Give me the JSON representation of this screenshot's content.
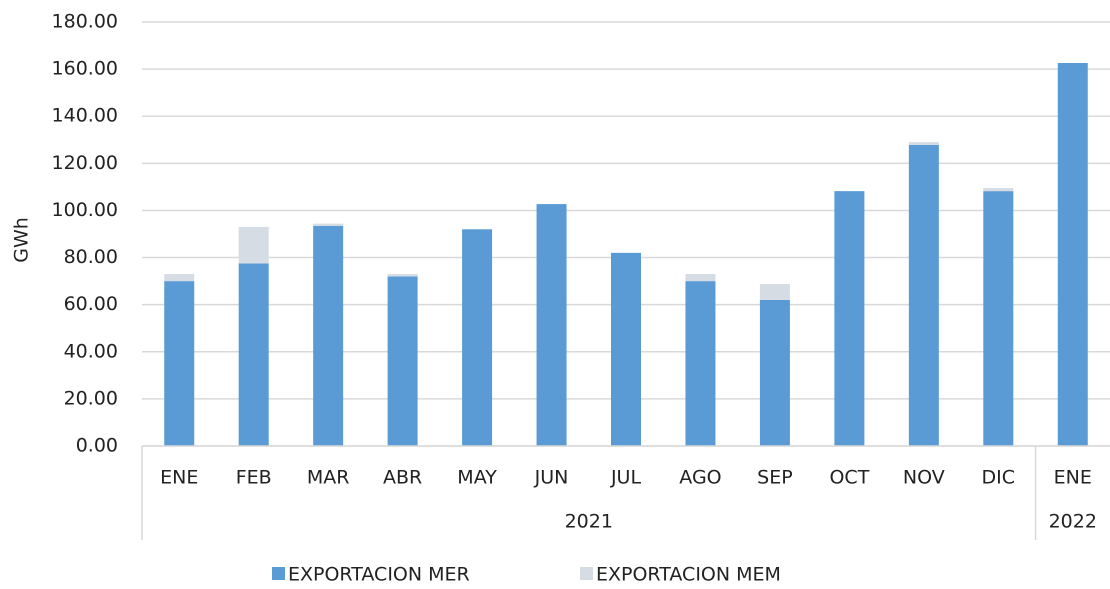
{
  "chart_data": {
    "type": "stacked_bar",
    "y_label": "GWh",
    "categories": [
      "ENE",
      "FEB",
      "MAR",
      "ABR",
      "MAY",
      "JUN",
      "JUL",
      "AGO",
      "SEP",
      "OCT",
      "NOV",
      "DIC",
      "ENE"
    ],
    "x_groups": [
      "2021",
      "2021",
      "2021",
      "2021",
      "2021",
      "2021",
      "2021",
      "2021",
      "2021",
      "2021",
      "2021",
      "2021",
      "2022"
    ],
    "series": [
      {
        "name": "EXPORTACION MER",
        "color": "#5b9bd5",
        "values": [
          70,
          77.5,
          93.4,
          72,
          92,
          102.7,
          82,
          70,
          62,
          108.2,
          127.8,
          108.2,
          162.6
        ]
      },
      {
        "name": "EXPORTACION MEM",
        "color": "#d6dce4",
        "values": [
          3,
          15.5,
          1,
          1,
          0,
          0,
          0,
          3,
          6.8,
          0,
          1.2,
          1.3,
          0
        ]
      }
    ],
    "ylim": [
      0,
      180
    ],
    "yticks": [
      {
        "value": 0,
        "label": "0.00"
      },
      {
        "value": 20,
        "label": "20.00"
      },
      {
        "value": 40,
        "label": "40.00"
      },
      {
        "value": 60,
        "label": "60.00"
      },
      {
        "value": 80,
        "label": "80.00"
      },
      {
        "value": 100,
        "label": "100.00"
      },
      {
        "value": 120,
        "label": "120.00"
      },
      {
        "value": 140,
        "label": "140.00"
      },
      {
        "value": 160,
        "label": "160.00"
      },
      {
        "value": 180,
        "label": "180.00"
      }
    ],
    "grid": true,
    "legend": "bottom"
  }
}
